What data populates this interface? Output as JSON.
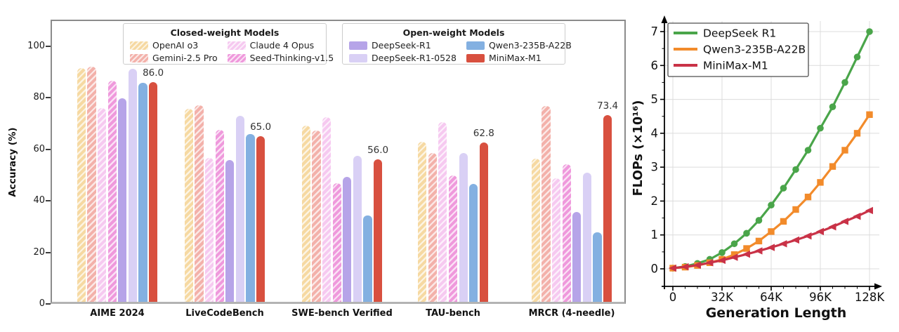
{
  "chart_data": [
    {
      "type": "bar",
      "title": "",
      "xlabel": "",
      "ylabel": "Accuracy (%)",
      "ylim": [
        0,
        110
      ],
      "yticks": [
        0,
        20,
        40,
        60,
        80,
        100
      ],
      "grid": false,
      "categories": [
        "AIME 2024",
        "LiveCodeBench",
        "SWE-bench Verified",
        "TAU-bench",
        "MRCR (4-needle)"
      ],
      "legend_titles": [
        "Closed-weight Models",
        "Open-weight Models"
      ],
      "hatch_style": "white diagonal stripes on closed-weight bars",
      "series": [
        {
          "name": "OpenAI o3",
          "group": "closed",
          "color": "#f6d9a2",
          "hatch": true,
          "values": [
            91.6,
            75.8,
            69.1,
            63.0,
            56.5
          ]
        },
        {
          "name": "Gemini-2.5 Pro",
          "group": "closed",
          "color": "#f3b1aa",
          "hatch": true,
          "values": [
            92.0,
            77.1,
            67.2,
            58.5,
            76.8
          ]
        },
        {
          "name": "Claude 4 Opus",
          "group": "closed",
          "color": "#f6c9f0",
          "hatch": true,
          "values": [
            76.0,
            56.6,
            72.5,
            70.5,
            48.9
          ]
        },
        {
          "name": "Seed-Thinking-v1.5",
          "group": "closed",
          "color": "#ef99dc",
          "hatch": true,
          "values": [
            86.7,
            67.5,
            47.0,
            49.9,
            54.3
          ]
        },
        {
          "name": "DeepSeek-R1",
          "group": "open",
          "color": "#b6a4e8",
          "hatch": false,
          "values": [
            79.8,
            55.9,
            49.2,
            null,
            35.8
          ]
        },
        {
          "name": "DeepSeek-R1-0528",
          "group": "open",
          "color": "#d9d0f5",
          "hatch": false,
          "values": [
            91.4,
            73.1,
            57.6,
            58.7,
            51.0
          ]
        },
        {
          "name": "Qwen3-235B-A22B",
          "group": "open",
          "color": "#83b0e1",
          "hatch": false,
          "values": [
            85.7,
            65.9,
            34.4,
            46.5,
            27.7
          ]
        },
        {
          "name": "MiniMax-M1",
          "group": "open",
          "color": "#d8503f",
          "hatch": false,
          "values": [
            86.0,
            65.0,
            56.0,
            62.8,
            73.4
          ]
        }
      ],
      "bar_labels": {
        "series": "MiniMax-M1",
        "labels": [
          "86.0",
          "65.0",
          "56.0",
          "62.8",
          "73.4"
        ]
      }
    },
    {
      "type": "line",
      "title": "",
      "xlabel": "Generation Length",
      "ylabel": "FLOPs (×10¹⁶)",
      "x_unit": "K tokens",
      "x": [
        0,
        8,
        16,
        24,
        32,
        40,
        48,
        56,
        64,
        72,
        80,
        88,
        96,
        104,
        112,
        120,
        128
      ],
      "xtick_positions": [
        0,
        32,
        64,
        96,
        128
      ],
      "xtick_labels": [
        "0",
        "32K",
        "64K",
        "96K",
        "128K"
      ],
      "yticks": [
        0,
        1,
        2,
        3,
        4,
        5,
        6,
        7
      ],
      "ylim": [
        0,
        7.4
      ],
      "grid": true,
      "legend_position": "upper left",
      "series": [
        {
          "name": "DeepSeek R1",
          "color": "#4aa54a",
          "marker": "circle",
          "values": [
            0.02,
            0.07,
            0.16,
            0.28,
            0.48,
            0.74,
            1.05,
            1.43,
            1.88,
            2.38,
            2.93,
            3.5,
            4.15,
            4.78,
            5.5,
            6.25,
            7.0
          ]
        },
        {
          "name": "Qwen3-235B-A22B",
          "color": "#f28b2b",
          "marker": "square",
          "values": [
            0.02,
            0.05,
            0.1,
            0.18,
            0.28,
            0.42,
            0.6,
            0.82,
            1.1,
            1.4,
            1.75,
            2.12,
            2.55,
            3.02,
            3.5,
            4.0,
            4.55
          ]
        },
        {
          "name": "MiniMax-M1",
          "color": "#c93247",
          "marker": "triangle-left",
          "values": [
            0.02,
            0.06,
            0.11,
            0.18,
            0.25,
            0.34,
            0.43,
            0.53,
            0.63,
            0.74,
            0.85,
            0.97,
            1.1,
            1.24,
            1.4,
            1.55,
            1.72
          ]
        }
      ]
    }
  ]
}
